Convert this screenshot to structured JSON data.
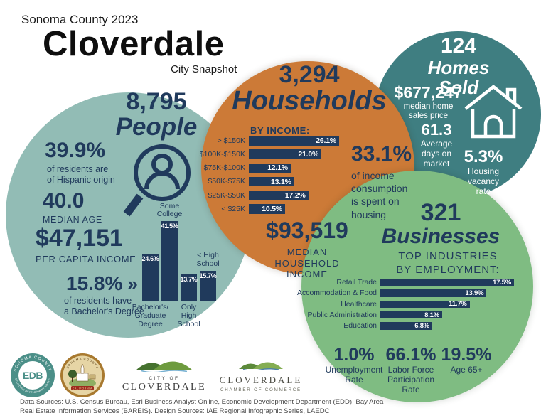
{
  "colors": {
    "navy": "#203a5c",
    "teal": "#92bcb5",
    "orange": "#cc7a37",
    "darkteal": "#3f7e81",
    "green": "#7fbc82"
  },
  "header": {
    "kicker": "Sonoma County 2023",
    "title": "Cloverdale",
    "subtitle": "City Snapshot"
  },
  "people": {
    "stat": "8,795",
    "stat_label": "People",
    "hispanic_value": "39.9%",
    "hispanic_desc": "of residents are\nof Hispanic origin",
    "median_age_value": "40.0",
    "median_age_label": "MEDIAN AGE",
    "income_value": "$47,151",
    "income_label": "PER CAPITA INCOME",
    "bachelors_value": "15.8%",
    "bachelors_arrow": "»",
    "bachelors_desc": "of residents have\na Bachelor's Degree"
  },
  "households": {
    "stat": "3,294",
    "stat_label": "Households",
    "chart_title": "BY INCOME:",
    "median_income_value": "$93,519",
    "median_income_label": "MEDIAN\nHOUSEHOLD\nINCOME",
    "housing_value": "33.1%",
    "housing_desc": "of income\nconsumption\nis spent on\nhousing"
  },
  "homes": {
    "stat": "124",
    "stat_label": "Homes Sold",
    "price_value": "$677,247",
    "price_desc": "median home\nsales price",
    "days_value": "61.3",
    "days_desc": "Average\ndays on\nmarket",
    "vacancy_value": "5.3%",
    "vacancy_desc": "Housing\nvacancy\nrate"
  },
  "businesses": {
    "stat": "321",
    "stat_label": "Businesses",
    "chart_title": "TOP INDUSTRIES\nBY EMPLOYMENT:",
    "unemployment_value": "1.0%",
    "unemployment_label": "Unemployment\nRate",
    "labor_value": "66.1%",
    "labor_label": "Labor Force\nParticipation\nRate",
    "age65_value": "19.5%",
    "age65_label": "Age 65+"
  },
  "footer": {
    "edb_center": "EDB",
    "edb_top": "SONOMA COUNTY",
    "edb_bottom": "ECONOMIC DEVELOPMENT BOARD",
    "seal_top": "SONOMA COUNTY",
    "seal_banner": "CALIFORNIA",
    "city_line1": "CITY OF",
    "city_line2": "CLOVERDALE",
    "chamber_line1": "CLOVERDALE",
    "chamber_line2": "CHAMBER OF COMMERCE",
    "sources": "Data Sources: U.S. Census Bureau, Esri Business Analyst Online, Economic Development Department (EDD), Bay Area\nReal Estate Information Services (BAREIS). Design Sources: IAE Regional Infographic Series, LAEDC"
  },
  "chart_data": [
    {
      "id": "education",
      "type": "bar",
      "orientation": "vertical",
      "title": "Educational attainment of residents",
      "categories": [
        "Bachelor's/\nGraduate\nDegree",
        "Some\nCollege",
        "Only\nHigh\nSchool",
        "< High\nSchool"
      ],
      "values": [
        24.6,
        41.5,
        13.7,
        15.7
      ],
      "unit": "%",
      "ylim": [
        0,
        41.5
      ],
      "label_positions": [
        "below",
        "above",
        "below",
        "above"
      ],
      "grid": false,
      "legend": "none"
    },
    {
      "id": "household_income",
      "type": "bar",
      "orientation": "horizontal",
      "title": "BY INCOME:",
      "categories": [
        "> $150K",
        "$100K-$150K",
        "$75K-$100K",
        "$50K-$75K",
        "$25K-$50K",
        "< $25K"
      ],
      "values": [
        26.1,
        21.0,
        12.1,
        13.1,
        17.2,
        10.5
      ],
      "unit": "%",
      "xlim": [
        0,
        26.1
      ],
      "grid": false,
      "legend": "none"
    },
    {
      "id": "industries",
      "type": "bar",
      "orientation": "horizontal",
      "title": "TOP INDUSTRIES BY EMPLOYMENT:",
      "categories": [
        "Retail Trade",
        "Accommodation & Food",
        "Healthcare",
        "Public Administration",
        "Education"
      ],
      "values": [
        17.5,
        13.9,
        11.7,
        8.1,
        6.8
      ],
      "unit": "%",
      "xlim": [
        0,
        17.5
      ],
      "grid": false,
      "legend": "none"
    }
  ]
}
